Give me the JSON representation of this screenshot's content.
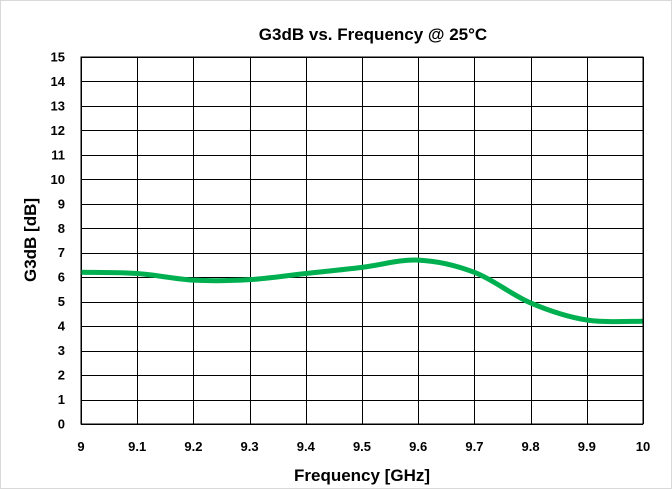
{
  "chart_data": {
    "type": "line",
    "title": "G3dB vs. Frequency @ 25°C",
    "xlabel": "Frequency [GHz]",
    "ylabel": "G3dB [dB]",
    "xlim": [
      9,
      10
    ],
    "ylim": [
      0,
      15
    ],
    "x_ticks": [
      "9",
      "9.1",
      "9.2",
      "9.3",
      "9.4",
      "9.5",
      "9.6",
      "9.7",
      "9.8",
      "9.9",
      "10"
    ],
    "y_ticks": [
      "0",
      "1",
      "2",
      "3",
      "4",
      "5",
      "6",
      "7",
      "8",
      "9",
      "10",
      "11",
      "12",
      "13",
      "14",
      "15"
    ],
    "grid": true,
    "legend": "none",
    "series": [
      {
        "color": "#00b050",
        "x": [
          9.0,
          9.1,
          9.2,
          9.3,
          9.4,
          9.5,
          9.6,
          9.7,
          9.8,
          9.9,
          10.0
        ],
        "y": [
          6.2,
          6.15,
          5.88,
          5.9,
          6.15,
          6.4,
          6.7,
          6.2,
          4.95,
          4.25,
          4.2
        ]
      }
    ]
  }
}
